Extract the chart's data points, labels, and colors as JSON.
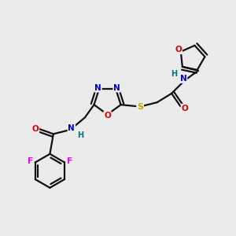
{
  "bg_color": "#ebebeb",
  "atom_colors": {
    "C": "#000000",
    "N": "#0000cc",
    "O": "#dd0000",
    "S": "#bbaa00",
    "F": "#ee00ee",
    "H": "#007777"
  },
  "bond_color": "#111111",
  "bond_width": 1.6,
  "fig_w": 3.0,
  "fig_h": 3.0,
  "dpi": 100,
  "xlim": [
    0,
    10
  ],
  "ylim": [
    0,
    10
  ]
}
